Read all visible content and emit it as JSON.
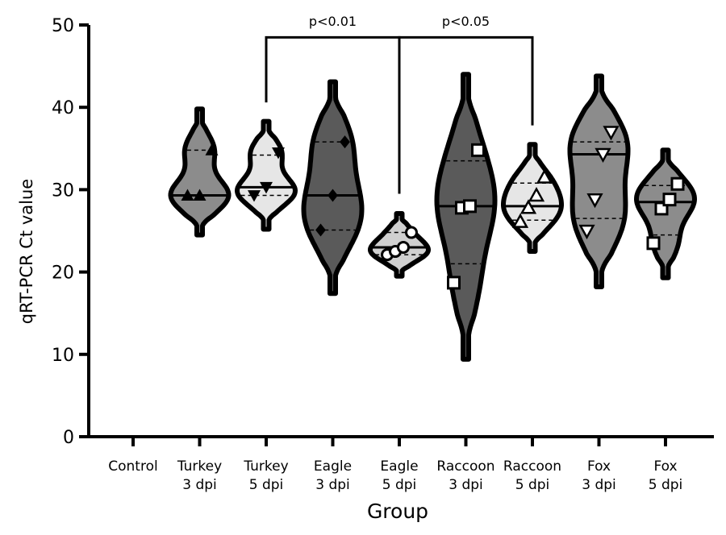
{
  "chart_data": {
    "type": "violin",
    "title": "",
    "xlabel": "Group",
    "ylabel": "qRT-PCR Ct value",
    "ylim": [
      0,
      50
    ],
    "yticks": [
      0,
      10,
      20,
      30,
      40,
      50
    ],
    "grid": false,
    "legend": "none",
    "groups": [
      {
        "label_line1": "Control",
        "label_line2": "",
        "fill": "#ffffff",
        "marker": "none",
        "median": null,
        "q1": null,
        "q3": null,
        "min": null,
        "max": null,
        "points": []
      },
      {
        "label_line1": "Turkey",
        "label_line2": "3 dpi",
        "fill": "#8c8c8c",
        "marker": "triangle-up",
        "median": 29.3,
        "q1": 29.3,
        "q3": 34.8,
        "min": 24.5,
        "max": 39.8,
        "points": [
          29.3,
          29.3,
          34.8
        ]
      },
      {
        "label_line1": "Turkey",
        "label_line2": "5 dpi",
        "fill": "#e6e6e6",
        "marker": "triangle-down",
        "median": 30.3,
        "q1": 29.3,
        "q3": 34.2,
        "min": 25.2,
        "max": 38.3,
        "points": [
          29.3,
          30.3,
          34.5
        ]
      },
      {
        "label_line1": "Eagle",
        "label_line2": "3 dpi",
        "fill": "#5a5a5a",
        "marker": "diamond",
        "median": 29.3,
        "q1": 25.1,
        "q3": 35.8,
        "min": 17.4,
        "max": 43.1,
        "points": [
          25.1,
          29.3,
          35.8
        ]
      },
      {
        "label_line1": "Eagle",
        "label_line2": "5 dpi",
        "fill": "#d0d0d0",
        "marker": "circle",
        "median": 23.0,
        "q1": 22.1,
        "q3": 24.8,
        "min": 19.5,
        "max": 27.1,
        "points": [
          22.1,
          22.5,
          23.0,
          24.8
        ]
      },
      {
        "label_line1": "Raccoon",
        "label_line2": "3 dpi",
        "fill": "#5a5a5a",
        "marker": "square",
        "median": 28.0,
        "q1": 21.0,
        "q3": 33.5,
        "min": 9.4,
        "max": 44.0,
        "points": [
          18.7,
          27.8,
          28.0,
          34.8
        ]
      },
      {
        "label_line1": "Raccoon",
        "label_line2": "5 dpi",
        "fill": "#e6e6e6",
        "marker": "triangle-up-open",
        "median": 28.0,
        "q1": 26.3,
        "q3": 30.8,
        "min": 22.5,
        "max": 35.5,
        "points": [
          26.1,
          27.8,
          29.3,
          31.5
        ]
      },
      {
        "label_line1": "Fox",
        "label_line2": "3 dpi",
        "fill": "#8c8c8c",
        "marker": "triangle-down-open",
        "median": 34.3,
        "q1": 26.5,
        "q3": 35.8,
        "min": 18.2,
        "max": 43.8,
        "points": [
          25.0,
          28.8,
          34.3,
          37.0
        ]
      },
      {
        "label_line1": "Fox",
        "label_line2": "5 dpi",
        "fill": "#8c8c8c",
        "marker": "square",
        "median": 28.5,
        "q1": 24.5,
        "q3": 30.5,
        "min": 19.3,
        "max": 34.8,
        "points": [
          23.5,
          27.7,
          28.8,
          30.7
        ]
      }
    ],
    "annotations": [
      {
        "text": "p<0.01",
        "from_group": 2,
        "to_group": 4,
        "bracket_y": 48.5,
        "left_end_y": 40.6,
        "right_end_y": 29.5
      },
      {
        "text": "p<0.05",
        "from_group": 4,
        "to_group": 6,
        "bracket_y": 48.5,
        "left_end_y": 29.5,
        "right_end_y": 37.8
      }
    ]
  }
}
